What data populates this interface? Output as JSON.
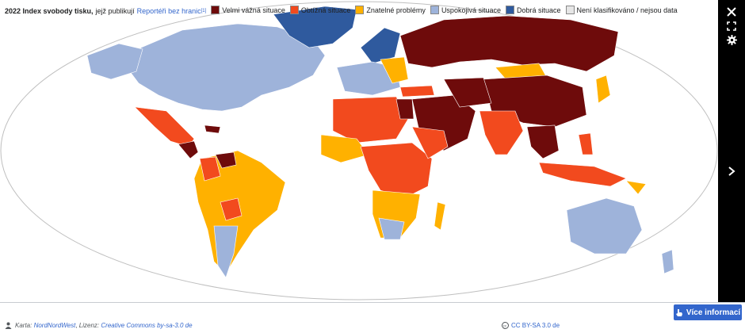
{
  "colors": {
    "very_serious": "#6e0b0b",
    "difficult": "#f24a1e",
    "problematic": "#ffb100",
    "satisfactory": "#9eb3da",
    "good": "#2f5a9e",
    "unclassified": "#e6e6e6",
    "ocean": "#ffffff",
    "viewer_bg": "#000000",
    "accent": "#3366cc"
  },
  "controls": {
    "close_icon": "close-icon",
    "fullscreen_icon": "fullscreen-icon",
    "settings_icon": "gear-icon",
    "next_icon": "chevron-right-icon"
  },
  "caption": {
    "title": "2022 Index svobody tisku,",
    "text": "jejž publikují",
    "publisher_link": "Reportéři bez hranic",
    "footnote": "[1]",
    "legend": [
      {
        "key": "very_serious",
        "label": "Velmi vážná situace"
      },
      {
        "key": "difficult",
        "label": "Obtížná situace"
      },
      {
        "key": "problematic",
        "label": "Znatelné problémy"
      },
      {
        "key": "satisfactory",
        "label": "Uspokojivá situace"
      },
      {
        "key": "good",
        "label": "Dobrá situace"
      },
      {
        "key": "unclassified",
        "label": "Není klasifikováno / nejsou data"
      }
    ]
  },
  "more_info_button": "Více informací",
  "meta": {
    "map_label": "Karta:",
    "author": "NordNordWest",
    "license_label": "Lizenz:",
    "license_link": "Creative Commons by-sa-3.0 de"
  },
  "license_badge": "CC BY-SA 3.0 de"
}
